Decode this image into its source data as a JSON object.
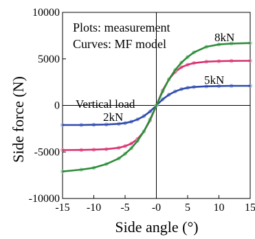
{
  "chart_data": {
    "type": "line",
    "xlabel": "Side angle (°)",
    "ylabel": "Side force (N)",
    "xlim": [
      -15,
      15
    ],
    "ylim": [
      -10000,
      10000
    ],
    "x_ticks": [
      "-15",
      "-10",
      "-5",
      "-0",
      "5",
      "10",
      "15"
    ],
    "y_ticks": [
      "10000",
      "5000",
      "0",
      "-5000",
      "-10000"
    ],
    "annotations": {
      "plots_note": "Plots: measurement",
      "curves_note": "Curves: MF model",
      "vertical_load": "Vertical load"
    },
    "x": [
      -15,
      -12,
      -10,
      -8,
      -6,
      -5,
      -4,
      -3,
      -2,
      -1,
      0,
      1,
      2,
      3,
      4,
      5,
      6,
      8,
      10,
      12,
      15
    ],
    "series": [
      {
        "name": "2kN",
        "color": "#2f4aa8",
        "marker_color": "#8fa3e8",
        "values": [
          -2100,
          -2100,
          -2080,
          -2050,
          -1980,
          -1900,
          -1750,
          -1500,
          -1150,
          -650,
          0,
          650,
          1150,
          1500,
          1750,
          1900,
          1980,
          2050,
          2080,
          2100,
          2100
        ]
      },
      {
        "name": "5kN",
        "color": "#d8326e",
        "marker_color": "#f08fb5",
        "values": [
          -4800,
          -4780,
          -4750,
          -4700,
          -4550,
          -4380,
          -4100,
          -3600,
          -2800,
          -1600,
          0,
          1600,
          2800,
          3600,
          4100,
          4380,
          4550,
          4700,
          4750,
          4780,
          4800
        ]
      },
      {
        "name": "8kN",
        "color": "#2e8b3a",
        "marker_color": "#8fd39a",
        "values": [
          -7100,
          -6900,
          -6700,
          -6300,
          -5700,
          -5200,
          -4600,
          -3800,
          -2800,
          -1500,
          0,
          1500,
          2800,
          3800,
          4600,
          5200,
          5700,
          6300,
          6550,
          6650,
          6700
        ]
      }
    ],
    "grid": false,
    "legend": "none"
  }
}
